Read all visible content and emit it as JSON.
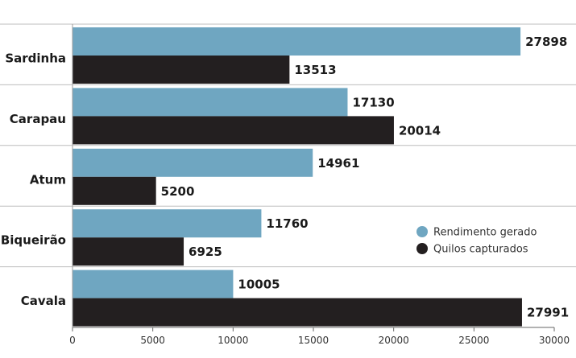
{
  "chart_data": {
    "type": "bar",
    "orientation": "horizontal",
    "categories": [
      "Sardinha",
      "Carapau",
      "Atum",
      "Biqueirão",
      "Cavala"
    ],
    "series": [
      {
        "name": "Rendimento gerado",
        "color": "#6fa6c1",
        "values": [
          27898,
          17130,
          14961,
          11760,
          10005
        ]
      },
      {
        "name": "Quilos capturados",
        "color": "#231f20",
        "values": [
          13513,
          20014,
          5200,
          6925,
          27991
        ]
      }
    ],
    "xlim": [
      0,
      30000
    ],
    "xticks": [
      0,
      5000,
      10000,
      15000,
      20000,
      25000,
      30000
    ],
    "legend_position": "right",
    "grid": false
  }
}
